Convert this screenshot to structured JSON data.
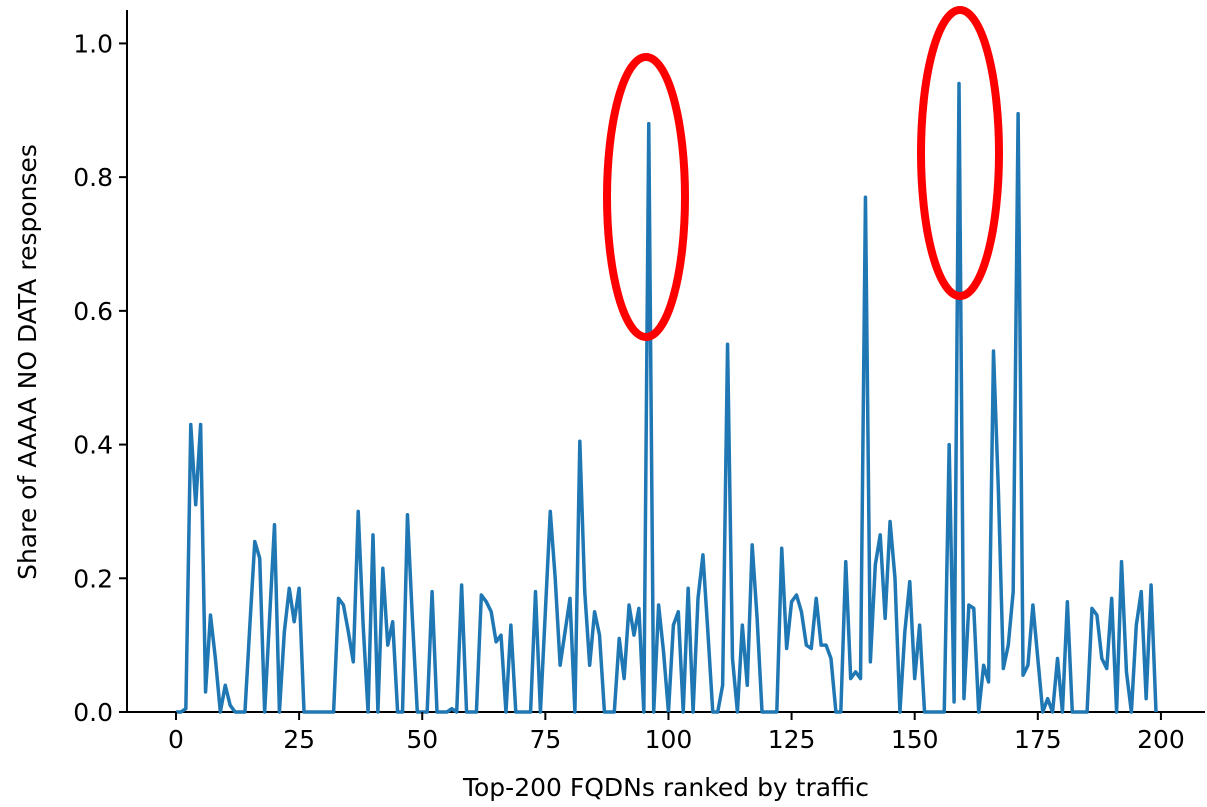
{
  "chart_data": {
    "type": "line",
    "xlabel": "Top-200 FQDNs ranked by traffic",
    "ylabel": "Share of AAAA NO DATA responses",
    "color": "#1f77b4",
    "x": [
      0,
      1,
      2,
      3,
      4,
      5,
      6,
      7,
      8,
      9,
      10,
      11,
      12,
      13,
      14,
      15,
      16,
      17,
      18,
      19,
      20,
      21,
      22,
      23,
      24,
      25,
      26,
      27,
      28,
      29,
      30,
      31,
      32,
      33,
      34,
      35,
      36,
      37,
      38,
      39,
      40,
      41,
      42,
      43,
      44,
      45,
      46,
      47,
      48,
      49,
      50,
      51,
      52,
      53,
      54,
      55,
      56,
      57,
      58,
      59,
      60,
      61,
      62,
      63,
      64,
      65,
      66,
      67,
      68,
      69,
      70,
      71,
      72,
      73,
      74,
      75,
      76,
      77,
      78,
      79,
      80,
      81,
      82,
      83,
      84,
      85,
      86,
      87,
      88,
      89,
      90,
      91,
      92,
      93,
      94,
      95,
      96,
      97,
      98,
      99,
      100,
      101,
      102,
      103,
      104,
      105,
      106,
      107,
      108,
      109,
      110,
      111,
      112,
      113,
      114,
      115,
      116,
      117,
      118,
      119,
      120,
      121,
      122,
      123,
      124,
      125,
      126,
      127,
      128,
      129,
      130,
      131,
      132,
      133,
      134,
      135,
      136,
      137,
      138,
      139,
      140,
      141,
      142,
      143,
      144,
      145,
      146,
      147,
      148,
      149,
      150,
      151,
      152,
      153,
      154,
      155,
      156,
      157,
      158,
      159,
      160,
      161,
      162,
      163,
      164,
      165,
      166,
      167,
      168,
      169,
      170,
      171,
      172,
      173,
      174,
      175,
      176,
      177,
      178,
      179,
      180,
      181,
      182,
      183,
      184,
      185,
      186,
      187,
      188,
      189,
      190,
      191,
      192,
      193,
      194,
      195,
      196,
      197,
      198,
      199
    ],
    "values": [
      0,
      0,
      0.005,
      0.43,
      0.31,
      0.43,
      0.03,
      0.145,
      0.08,
      0,
      0.04,
      0.01,
      0,
      0,
      0,
      0.13,
      0.255,
      0.23,
      0,
      0.14,
      0.28,
      0,
      0.12,
      0.185,
      0.135,
      0.185,
      0,
      0,
      0,
      0,
      0,
      0,
      0,
      0.17,
      0.16,
      0.12,
      0.075,
      0.3,
      0.13,
      0,
      0.265,
      0,
      0.215,
      0.1,
      0.135,
      0,
      0,
      0.295,
      0.14,
      0,
      0,
      0,
      0.18,
      0,
      0,
      0,
      0.005,
      0,
      0.19,
      0,
      0,
      0,
      0.175,
      0.165,
      0.15,
      0.105,
      0.115,
      0,
      0.13,
      0,
      0,
      0,
      0,
      0.18,
      0,
      0.15,
      0.3,
      0.2,
      0.07,
      0.12,
      0.17,
      0,
      0.405,
      0.18,
      0.07,
      0.15,
      0.115,
      0,
      0,
      0,
      0.11,
      0.05,
      0.16,
      0.115,
      0.155,
      0,
      0.88,
      0,
      0.16,
      0.09,
      0,
      0.13,
      0.15,
      0,
      0.185,
      0,
      0.17,
      0.235,
      0.12,
      0,
      0,
      0.04,
      0.55,
      0.08,
      0,
      0.13,
      0.04,
      0.25,
      0.14,
      0,
      0,
      0,
      0,
      0.245,
      0.095,
      0.165,
      0.175,
      0.15,
      0.1,
      0.095,
      0.17,
      0.1,
      0.1,
      0.08,
      0,
      0,
      0.225,
      0.05,
      0.06,
      0.05,
      0.77,
      0.075,
      0.22,
      0.265,
      0.14,
      0.285,
      0.2,
      0,
      0.12,
      0.195,
      0.05,
      0.13,
      0,
      0,
      0,
      0,
      0,
      0.4,
      0.015,
      0.94,
      0.02,
      0.16,
      0.155,
      0,
      0.07,
      0.045,
      0.54,
      0.33,
      0.065,
      0.1,
      0.18,
      0.895,
      0.055,
      0.07,
      0.16,
      0.08,
      0,
      0.02,
      0,
      0.08,
      0,
      0.165,
      0,
      0,
      0,
      0,
      0.155,
      0.145,
      0.08,
      0.065,
      0.17,
      0,
      0.225,
      0.06,
      0,
      0.13,
      0.18,
      0.02,
      0.19,
      0
    ],
    "xlim": [
      -9.95,
      208.95
    ],
    "ylim": [
      0,
      1.05
    ],
    "xticks": [
      0,
      25,
      50,
      75,
      100,
      125,
      150,
      175,
      200
    ],
    "yticks": [
      {
        "value": 0,
        "label": "0.0"
      },
      {
        "value": 0.2,
        "label": "0.2"
      },
      {
        "value": 0.4,
        "label": "0.4"
      },
      {
        "value": 0.6,
        "label": "0.6"
      },
      {
        "value": 0.8,
        "label": "0.8"
      },
      {
        "value": 1.0,
        "label": "1.0"
      }
    ]
  }
}
